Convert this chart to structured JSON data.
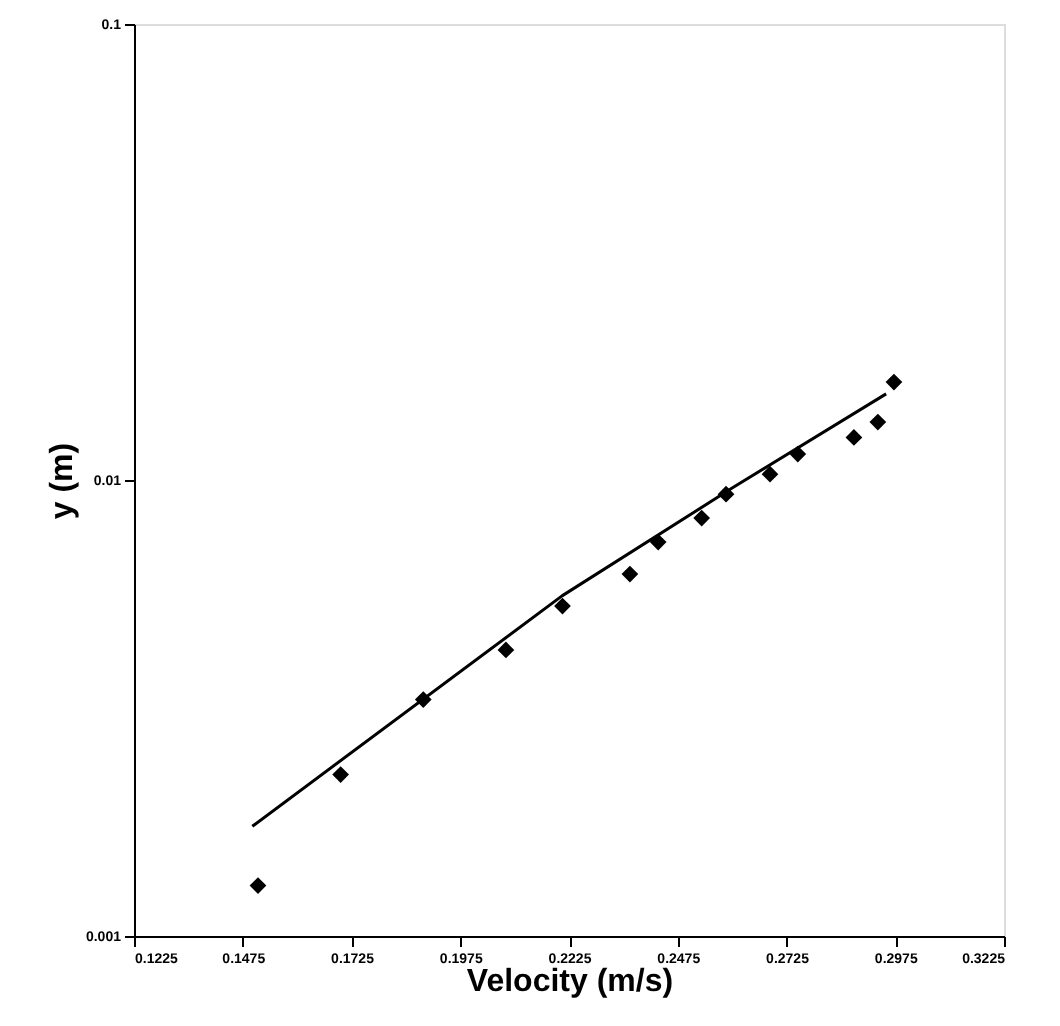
{
  "chart_data": {
    "type": "scatter",
    "xlabel": "Velocity (m/s)",
    "ylabel": "y (m)",
    "xlim": [
      0.1225,
      0.3225
    ],
    "xticks": [
      0.1225,
      0.1475,
      0.1725,
      0.1975,
      0.2225,
      0.2475,
      0.2725,
      0.2975,
      0.3225
    ],
    "ylim": [
      0.001,
      0.1
    ],
    "yticks": [
      0.001,
      0.01,
      0.1
    ],
    "log": true,
    "grid": false,
    "series": [
      {
        "marker": "diamond",
        "color": "#000000",
        "x": [
          0.151,
          0.17,
          0.189,
          0.208,
          0.221,
          0.2365,
          0.243,
          0.253,
          0.2586,
          0.2687,
          0.2751,
          0.288,
          0.2935,
          0.2972
        ],
        "values": [
          0.00129,
          0.00226,
          0.0033,
          0.00424,
          0.00529,
          0.00622,
          0.00731,
          0.00825,
          0.00931,
          0.0103,
          0.0114,
          0.0124,
          0.0134,
          0.0164
        ]
      },
      {
        "type": "line",
        "marker": "none",
        "line_style": "solid",
        "color": "#000000",
        "x": [
          0.1497,
          0.2209,
          0.26,
          0.2954
        ],
        "values": [
          0.00174,
          0.00557,
          0.0096,
          0.01545
        ]
      }
    ]
  }
}
